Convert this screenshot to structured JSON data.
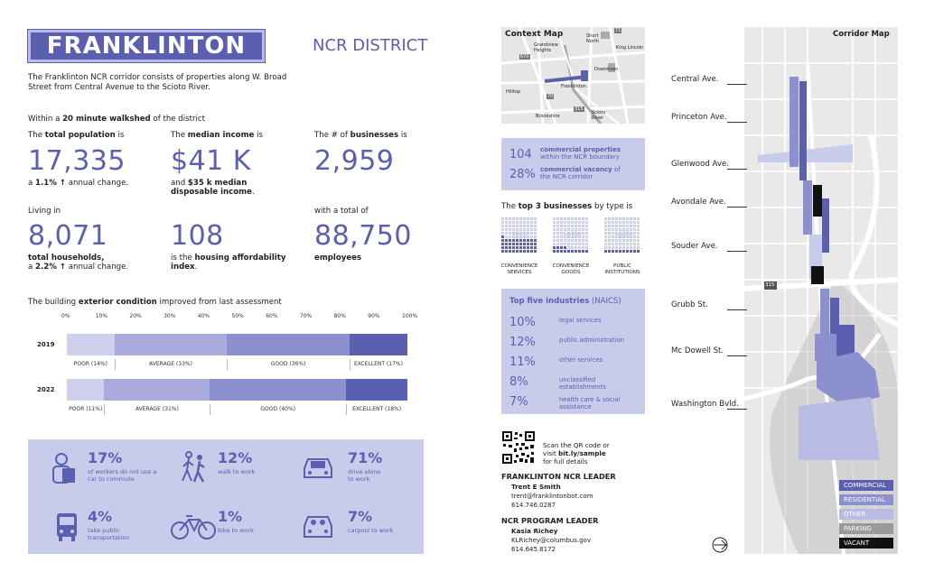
{
  "header": {
    "title": "FRANKLINTON",
    "district": "NCR DISTRICT",
    "intro": "The Franklinton NCR corridor consists of properties along W. Broad Street from Central Avenue to the Scioto River."
  },
  "walkshed": {
    "pre": "Within a ",
    "bold": "20 minute walkshed",
    "post": " of the district"
  },
  "stats": {
    "population": {
      "pre": "The ",
      "bold": "total population",
      "post": " is",
      "value": "17,335",
      "note_pre": "a ",
      "note_bold": "1.1% ↑",
      "note_post": " annual change."
    },
    "income": {
      "pre": "The ",
      "bold": "median income",
      "post": " is",
      "value": "$41 K",
      "note_pre": "and ",
      "note_bold": "$35 k median disposable income",
      "note_post": "."
    },
    "businesses": {
      "pre": "The # of ",
      "bold": "businesses",
      "post": " is",
      "value": "2,959"
    },
    "households": {
      "pre": "Living in",
      "value": "8,071",
      "note_bold": "total households,",
      "note_pre2": "a ",
      "note_bold2": "2.2% ↑",
      "note_post": " annual change."
    },
    "affordability": {
      "value": "108",
      "note_pre": "is the ",
      "note_bold": "housing affordability index",
      "note_post": "."
    },
    "employees": {
      "pre": "with a total of",
      "value": "88,750",
      "note_bold": "employees"
    }
  },
  "condition": {
    "pre": "The building ",
    "bold": "exterior condition",
    "post": " improved from last assessment",
    "ticks": [
      "0%",
      "10%",
      "20%",
      "30%",
      "40%",
      "50%",
      "60%",
      "70%",
      "80%",
      "90%",
      "100%"
    ],
    "rows": [
      {
        "year": "2019",
        "values": [
          14,
          33,
          36,
          17
        ],
        "labels": [
          "POOR (14%)",
          "AVERAGE (33%)",
          "GOOD (36%)",
          "EXCELLENT (17%)"
        ]
      },
      {
        "year": "2022",
        "values": [
          11,
          31,
          40,
          18
        ],
        "labels": [
          "POOR (11%)",
          "AVERAGE (31%)",
          "GOOD (40%)",
          "EXCELLENT (18%)"
        ]
      }
    ]
  },
  "transit": [
    {
      "pct": "17%",
      "desc": "of workers do not use a car to commute",
      "icon": "person-icon"
    },
    {
      "pct": "12%",
      "desc": "walk to work",
      "icon": "walking-icon"
    },
    {
      "pct": "71%",
      "desc": "drive alone to work",
      "icon": "car-icon"
    },
    {
      "pct": "4%",
      "desc": "take public transportation",
      "icon": "bus-icon"
    },
    {
      "pct": "1%",
      "desc": "bike to work",
      "icon": "bike-icon"
    },
    {
      "pct": "7%",
      "desc": "carpool to work",
      "icon": "carpool-icon"
    }
  ],
  "context_map": {
    "title": "Context Map",
    "labels": [
      "Grandview Heights",
      "Short North",
      "King Lincoln",
      "Downtown",
      "Franklinton",
      "Hilltop",
      "Brookshire",
      "Scioto River",
      "71",
      "670",
      "70",
      "315"
    ]
  },
  "commercial": {
    "n1": "104",
    "t1a": "commercial properties",
    "t1b": "within the NCR boundary",
    "n2": "28%",
    "t2a": "commercial vacancy",
    "t2b": " of",
    "t2c": "the NCR corridor"
  },
  "top3": {
    "pre": "The ",
    "bold": "top 3 businesses",
    "post": " by type is",
    "items": [
      {
        "pct": "41%",
        "value": 41,
        "label": "CONVENIENCE SERVICES"
      },
      {
        "pct": "14%",
        "value": 14,
        "label": "CONVENIENCE GOODS"
      },
      {
        "pct": "10%",
        "value": 10,
        "label": "PUBLIC INSTITUTIONS"
      }
    ]
  },
  "industries": {
    "title_bold": "Top five industries",
    "title_rest": " (NAICS)",
    "rows": [
      {
        "pct": "10%",
        "name": "legal services"
      },
      {
        "pct": "12%",
        "name": "public administration"
      },
      {
        "pct": "11%",
        "name": "other services"
      },
      {
        "pct": "8%",
        "name": "unclassified establishments"
      },
      {
        "pct": "7%",
        "name": "health care & social assistance"
      }
    ]
  },
  "qr": {
    "text1": "Scan the QR code or",
    "text2": "visit ",
    "link": "bit.ly/sample",
    "text3": "for full details"
  },
  "contacts": [
    {
      "title": "FRANKLINTON NCR LEADER",
      "name": "Trent E Smith",
      "email": "trent@franklintonbot.com",
      "phone": "614.746.0287"
    },
    {
      "title": "NCR PROGRAM LEADER",
      "name": "Kasia Richey",
      "email": "KLRichey@columbus.gov",
      "phone": "614.645.8172"
    }
  ],
  "corridor": {
    "title": "Corridor Map",
    "streets": [
      "Central Ave.",
      "Princeton Ave.",
      "Glenwood Ave.",
      "Avondale Ave.",
      "Souder Ave.",
      "Grubb St.",
      "Mc Dowell St.",
      "Washington Bvld."
    ],
    "shield": "315",
    "legend": [
      {
        "label": "COMMERCIAL",
        "color": "#5a5fb0"
      },
      {
        "label": "RESIDENTIAL",
        "color": "#8d90cf"
      },
      {
        "label": "OTHER",
        "color": "#b9bbe3"
      },
      {
        "label": "PARKING",
        "color": "#9a9a9a"
      },
      {
        "label": "VACANT",
        "color": "#111111"
      }
    ]
  }
}
